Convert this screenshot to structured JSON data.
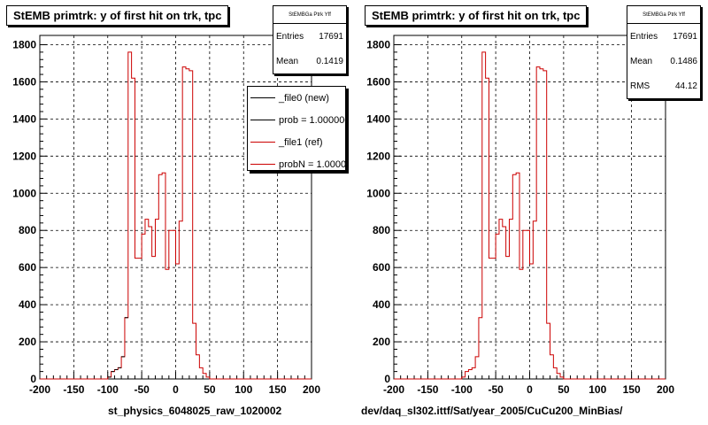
{
  "chart_data": [
    {
      "type": "histogram",
      "title": "StEMB primtrk: y of first hit on trk, tpc",
      "xlabel": "st_physics_6048025_raw_1020002",
      "xlim": [
        -200,
        200
      ],
      "ylim": [
        0,
        1850
      ],
      "x_ticks": [
        -200,
        -150,
        -100,
        -50,
        0,
        50,
        100,
        150,
        200
      ],
      "y_ticks": [
        0,
        200,
        400,
        600,
        800,
        1000,
        1200,
        1400,
        1600,
        1800
      ],
      "grid": true,
      "bin_edges_start": -200,
      "bin_width": 5,
      "series": [
        {
          "name": "_file1 (ref)",
          "color": "#cc0000",
          "values": [
            0,
            0,
            0,
            0,
            0,
            0,
            0,
            0,
            0,
            0,
            0,
            0,
            0,
            0,
            0,
            0,
            0,
            0,
            0,
            0,
            10,
            40,
            50,
            60,
            120,
            330,
            1760,
            1620,
            650,
            650,
            780,
            860,
            820,
            660,
            860,
            1100,
            1110,
            590,
            800,
            800,
            620,
            850,
            1680,
            1670,
            1660,
            300,
            130,
            60,
            30,
            10,
            0,
            0,
            0,
            0,
            0,
            0,
            0,
            0,
            0,
            0,
            0,
            0,
            0,
            0,
            0,
            0,
            0,
            0,
            0,
            0,
            0,
            0,
            0,
            0,
            0,
            0,
            0,
            0,
            0,
            0
          ]
        },
        {
          "name": "_file0 (new)",
          "color": "#000000",
          "values": [
            0,
            0,
            0,
            0,
            0,
            0,
            0,
            0,
            0,
            0,
            0,
            0,
            0,
            0,
            0,
            0,
            0,
            0,
            0,
            0,
            10,
            40,
            50,
            60,
            120,
            330,
            0,
            0,
            0,
            0,
            0,
            0,
            0,
            0,
            0,
            0,
            0,
            0,
            0,
            0,
            0,
            0,
            0,
            0,
            0,
            0,
            0,
            0,
            0,
            0,
            0,
            0,
            0,
            0,
            0,
            0,
            0,
            0,
            0,
            0,
            0,
            0,
            0,
            0,
            0,
            0,
            0,
            0,
            0,
            0,
            0,
            0,
            0,
            0,
            0,
            0,
            0,
            0,
            0,
            0
          ]
        }
      ],
      "stats": {
        "header": "StEMBGa Ptrk Yff",
        "entries_label": "Entries",
        "entries": "17691",
        "mean_label": "Mean",
        "mean": "0.1419"
      },
      "legend": [
        "_file0 (new)",
        "prob = 1.000000",
        "_file1 (ref)",
        "probN = 1.000000"
      ],
      "legend_colors": [
        "#000000",
        "#000000",
        "#cc0000",
        "#cc0000"
      ]
    },
    {
      "type": "histogram",
      "title": "StEMB primtrk: y of first hit on trk, tpc",
      "xlabel": "dev/daq_sl302.ittf/Sat/year_2005/CuCu200_MinBias/",
      "xlim": [
        -200,
        200
      ],
      "ylim": [
        0,
        1850
      ],
      "x_ticks": [
        -200,
        -150,
        -100,
        -50,
        0,
        50,
        100,
        150,
        200
      ],
      "y_ticks": [
        0,
        200,
        400,
        600,
        800,
        1000,
        1200,
        1400,
        1600,
        1800
      ],
      "grid": true,
      "bin_edges_start": -200,
      "bin_width": 5,
      "series": [
        {
          "color": "#cc0000",
          "values": [
            0,
            0,
            0,
            0,
            0,
            0,
            0,
            0,
            0,
            0,
            0,
            0,
            0,
            0,
            0,
            0,
            0,
            0,
            0,
            0,
            10,
            40,
            50,
            60,
            120,
            330,
            1760,
            1620,
            650,
            650,
            780,
            860,
            820,
            660,
            860,
            1100,
            1110,
            590,
            800,
            800,
            620,
            850,
            1680,
            1670,
            1660,
            300,
            130,
            60,
            30,
            10,
            0,
            0,
            0,
            0,
            0,
            0,
            0,
            0,
            0,
            0,
            0,
            0,
            0,
            0,
            0,
            0,
            0,
            0,
            0,
            0,
            0,
            0,
            0,
            0,
            0,
            0,
            0,
            0,
            0,
            0
          ]
        }
      ],
      "stats": {
        "header": "StEMBGa Ptrk Yff",
        "entries_label": "Entries",
        "entries": "17691",
        "mean_label": "Mean",
        "mean": "0.1486",
        "rms_label": "RMS",
        "rms": "44.12"
      }
    }
  ]
}
